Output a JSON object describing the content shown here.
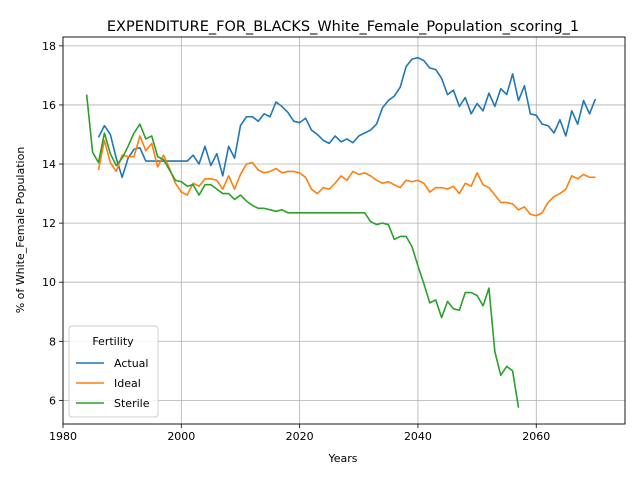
{
  "chart_data": {
    "type": "line",
    "title": "EXPENDITURE_FOR_BLACKS_White_Female_Population_scoring_1",
    "xlabel": "Years",
    "ylabel": "% of White_Female Population",
    "xlim": [
      1980,
      2075
    ],
    "ylim": [
      5.2,
      18.3
    ],
    "xticks": [
      1980,
      2000,
      2020,
      2040,
      2060
    ],
    "yticks": [
      6,
      8,
      10,
      12,
      14,
      16,
      18
    ],
    "grid": true,
    "legend": {
      "title": "Fertility",
      "position": "lower-left"
    },
    "series": [
      {
        "name": "Actual",
        "color": "#1f77b4",
        "points": [
          [
            1986,
            14.9
          ],
          [
            1987,
            15.3
          ],
          [
            1988,
            15.0
          ],
          [
            1989,
            14.2
          ],
          [
            1990,
            13.55
          ],
          [
            1991,
            14.2
          ],
          [
            1992,
            14.5
          ],
          [
            1993,
            14.55
          ],
          [
            1994,
            14.1
          ],
          [
            1995,
            14.1
          ],
          [
            1996,
            14.1
          ],
          [
            1997,
            14.1
          ],
          [
            1998,
            14.1
          ],
          [
            1999,
            14.1
          ],
          [
            2000,
            14.1
          ],
          [
            2001,
            14.1
          ],
          [
            2002,
            14.3
          ],
          [
            2003,
            14.0
          ],
          [
            2004,
            14.6
          ],
          [
            2005,
            13.95
          ],
          [
            2006,
            14.35
          ],
          [
            2007,
            13.6
          ],
          [
            2008,
            14.6
          ],
          [
            2009,
            14.2
          ],
          [
            2010,
            15.3
          ],
          [
            2011,
            15.6
          ],
          [
            2012,
            15.6
          ],
          [
            2013,
            15.45
          ],
          [
            2014,
            15.7
          ],
          [
            2015,
            15.6
          ],
          [
            2016,
            16.1
          ],
          [
            2017,
            15.95
          ],
          [
            2018,
            15.75
          ],
          [
            2019,
            15.45
          ],
          [
            2020,
            15.4
          ],
          [
            2021,
            15.55
          ],
          [
            2022,
            15.15
          ],
          [
            2023,
            15.0
          ],
          [
            2024,
            14.8
          ],
          [
            2025,
            14.7
          ],
          [
            2026,
            14.95
          ],
          [
            2027,
            14.75
          ],
          [
            2028,
            14.85
          ],
          [
            2029,
            14.72
          ],
          [
            2030,
            14.95
          ],
          [
            2031,
            15.05
          ],
          [
            2032,
            15.15
          ],
          [
            2033,
            15.35
          ],
          [
            2034,
            15.9
          ],
          [
            2035,
            16.15
          ],
          [
            2036,
            16.3
          ],
          [
            2037,
            16.6
          ],
          [
            2038,
            17.3
          ],
          [
            2039,
            17.55
          ],
          [
            2040,
            17.6
          ],
          [
            2041,
            17.5
          ],
          [
            2042,
            17.25
          ],
          [
            2043,
            17.2
          ],
          [
            2044,
            16.9
          ],
          [
            2045,
            16.35
          ],
          [
            2046,
            16.5
          ],
          [
            2047,
            15.95
          ],
          [
            2048,
            16.25
          ],
          [
            2049,
            15.7
          ],
          [
            2050,
            16.05
          ],
          [
            2051,
            15.8
          ],
          [
            2052,
            16.4
          ],
          [
            2053,
            15.95
          ],
          [
            2054,
            16.55
          ],
          [
            2055,
            16.35
          ],
          [
            2056,
            17.05
          ],
          [
            2057,
            16.15
          ],
          [
            2058,
            16.65
          ],
          [
            2059,
            15.7
          ],
          [
            2060,
            15.65
          ],
          [
            2061,
            15.35
          ],
          [
            2062,
            15.3
          ],
          [
            2063,
            15.05
          ],
          [
            2064,
            15.5
          ],
          [
            2065,
            14.95
          ],
          [
            2066,
            15.8
          ],
          [
            2067,
            15.35
          ],
          [
            2068,
            16.15
          ],
          [
            2069,
            15.7
          ],
          [
            2070,
            16.2
          ]
        ]
      },
      {
        "name": "Ideal",
        "color": "#ff7f0e",
        "points": [
          [
            1986,
            13.8
          ],
          [
            1987,
            14.8
          ],
          [
            1988,
            14.05
          ],
          [
            1989,
            13.75
          ],
          [
            1990,
            14.3
          ],
          [
            1991,
            14.25
          ],
          [
            1992,
            14.25
          ],
          [
            1993,
            14.95
          ],
          [
            1994,
            14.45
          ],
          [
            1995,
            14.7
          ],
          [
            1996,
            13.9
          ],
          [
            1997,
            14.3
          ],
          [
            1998,
            13.85
          ],
          [
            1999,
            13.35
          ],
          [
            2000,
            13.05
          ],
          [
            2001,
            12.95
          ],
          [
            2002,
            13.35
          ],
          [
            2003,
            13.25
          ],
          [
            2004,
            13.5
          ],
          [
            2005,
            13.5
          ],
          [
            2006,
            13.45
          ],
          [
            2007,
            13.15
          ],
          [
            2008,
            13.6
          ],
          [
            2009,
            13.15
          ],
          [
            2010,
            13.65
          ],
          [
            2011,
            14.0
          ],
          [
            2012,
            14.05
          ],
          [
            2013,
            13.8
          ],
          [
            2014,
            13.7
          ],
          [
            2015,
            13.75
          ],
          [
            2016,
            13.85
          ],
          [
            2017,
            13.7
          ],
          [
            2018,
            13.75
          ],
          [
            2019,
            13.75
          ],
          [
            2020,
            13.7
          ],
          [
            2021,
            13.55
          ],
          [
            2022,
            13.15
          ],
          [
            2023,
            13.0
          ],
          [
            2024,
            13.2
          ],
          [
            2025,
            13.15
          ],
          [
            2026,
            13.35
          ],
          [
            2027,
            13.6
          ],
          [
            2028,
            13.45
          ],
          [
            2029,
            13.75
          ],
          [
            2030,
            13.65
          ],
          [
            2031,
            13.7
          ],
          [
            2032,
            13.6
          ],
          [
            2033,
            13.45
          ],
          [
            2034,
            13.35
          ],
          [
            2035,
            13.4
          ],
          [
            2036,
            13.3
          ],
          [
            2037,
            13.2
          ],
          [
            2038,
            13.45
          ],
          [
            2039,
            13.4
          ],
          [
            2040,
            13.45
          ],
          [
            2041,
            13.35
          ],
          [
            2042,
            13.05
          ],
          [
            2043,
            13.2
          ],
          [
            2044,
            13.2
          ],
          [
            2045,
            13.15
          ],
          [
            2046,
            13.25
          ],
          [
            2047,
            13.0
          ],
          [
            2048,
            13.35
          ],
          [
            2049,
            13.25
          ],
          [
            2050,
            13.7
          ],
          [
            2051,
            13.3
          ],
          [
            2052,
            13.2
          ],
          [
            2053,
            12.95
          ],
          [
            2054,
            12.7
          ],
          [
            2055,
            12.7
          ],
          [
            2056,
            12.65
          ],
          [
            2057,
            12.45
          ],
          [
            2058,
            12.55
          ],
          [
            2059,
            12.3
          ],
          [
            2060,
            12.25
          ],
          [
            2061,
            12.35
          ],
          [
            2062,
            12.7
          ],
          [
            2063,
            12.9
          ],
          [
            2064,
            13.0
          ],
          [
            2065,
            13.15
          ],
          [
            2066,
            13.6
          ],
          [
            2067,
            13.5
          ],
          [
            2068,
            13.65
          ],
          [
            2069,
            13.55
          ],
          [
            2070,
            13.55
          ]
        ]
      },
      {
        "name": "Sterile",
        "color": "#2ca02c",
        "points": [
          [
            1984,
            16.35
          ],
          [
            1985,
            14.4
          ],
          [
            1986,
            14.05
          ],
          [
            1987,
            15.05
          ],
          [
            1988,
            14.35
          ],
          [
            1989,
            13.95
          ],
          [
            1990,
            14.2
          ],
          [
            1991,
            14.6
          ],
          [
            1992,
            15.05
          ],
          [
            1993,
            15.35
          ],
          [
            1994,
            14.85
          ],
          [
            1995,
            14.95
          ],
          [
            1996,
            14.25
          ],
          [
            1997,
            14.15
          ],
          [
            1998,
            13.8
          ],
          [
            1999,
            13.45
          ],
          [
            2000,
            13.4
          ],
          [
            2001,
            13.25
          ],
          [
            2002,
            13.3
          ],
          [
            2003,
            12.95
          ],
          [
            2004,
            13.3
          ],
          [
            2005,
            13.3
          ],
          [
            2006,
            13.15
          ],
          [
            2007,
            13.0
          ],
          [
            2008,
            13.0
          ],
          [
            2009,
            12.8
          ],
          [
            2010,
            12.95
          ],
          [
            2011,
            12.75
          ],
          [
            2012,
            12.6
          ],
          [
            2013,
            12.5
          ],
          [
            2014,
            12.5
          ],
          [
            2015,
            12.45
          ],
          [
            2016,
            12.4
          ],
          [
            2017,
            12.45
          ],
          [
            2018,
            12.35
          ],
          [
            2019,
            12.35
          ],
          [
            2020,
            12.35
          ],
          [
            2025,
            12.35
          ],
          [
            2030,
            12.35
          ],
          [
            2031,
            12.35
          ],
          [
            2032,
            12.05
          ],
          [
            2033,
            11.95
          ],
          [
            2034,
            12.0
          ],
          [
            2035,
            11.95
          ],
          [
            2036,
            11.45
          ],
          [
            2037,
            11.55
          ],
          [
            2038,
            11.55
          ],
          [
            2039,
            11.2
          ],
          [
            2040,
            10.55
          ],
          [
            2041,
            9.95
          ],
          [
            2042,
            9.3
          ],
          [
            2043,
            9.4
          ],
          [
            2044,
            8.8
          ],
          [
            2045,
            9.35
          ],
          [
            2046,
            9.1
          ],
          [
            2047,
            9.05
          ],
          [
            2048,
            9.65
          ],
          [
            2049,
            9.65
          ],
          [
            2050,
            9.55
          ],
          [
            2051,
            9.2
          ],
          [
            2052,
            9.8
          ],
          [
            2053,
            7.65
          ],
          [
            2054,
            6.85
          ],
          [
            2055,
            7.15
          ],
          [
            2056,
            7.0
          ],
          [
            2057,
            5.75
          ]
        ]
      }
    ]
  }
}
